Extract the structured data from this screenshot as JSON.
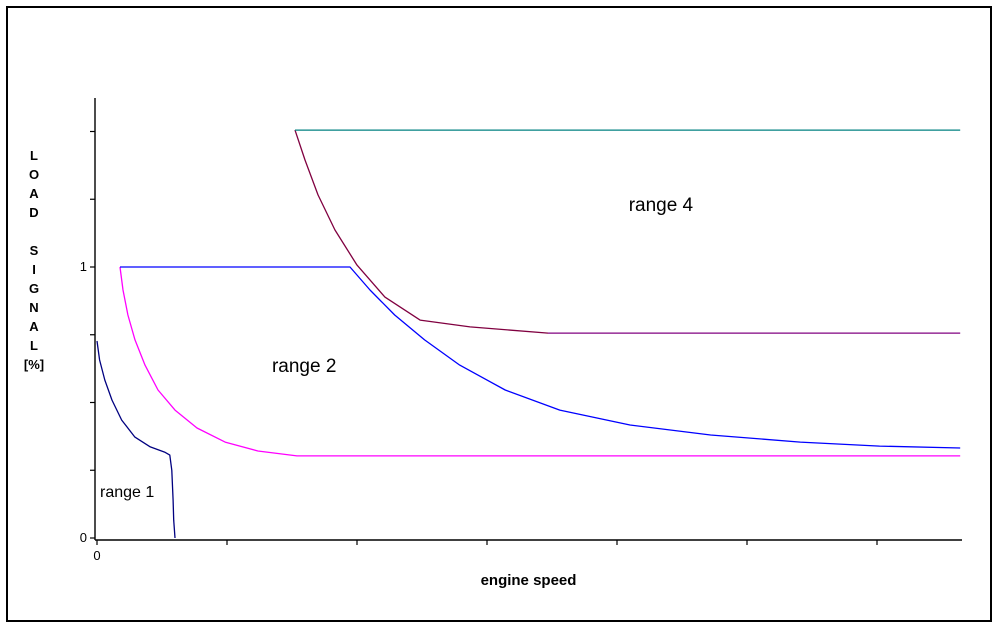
{
  "figure": {
    "background": "#ffffff",
    "border_color": "#000000",
    "axis_color": "#000000"
  },
  "chart_data": {
    "type": "line",
    "title": "",
    "xlabel": "engine speed",
    "ylabel": "LOAD SIGNAL [%]",
    "ylabel_lines": [
      "L",
      "O",
      "A",
      "D",
      "",
      "S",
      "I",
      "G",
      "N",
      "A",
      "L",
      "[%]"
    ],
    "xlim": [
      0,
      6.65
    ],
    "ylim": [
      0,
      1.69
    ],
    "x_ticks": [
      0,
      1,
      2,
      3,
      4,
      5,
      6
    ],
    "y_ticks": [
      0,
      0.25,
      0.5,
      0.75,
      1,
      1.25,
      1.5
    ],
    "x_tick_labels": [
      {
        "value": 0,
        "label": "0"
      }
    ],
    "y_tick_labels": [
      {
        "value": 1,
        "label": "1"
      },
      {
        "value": 0,
        "label": "0"
      }
    ],
    "grid": false,
    "legend": "none",
    "annotations": [
      {
        "text": "range 1",
        "x": 0.023,
        "y": 0.162,
        "size": 16
      },
      {
        "text": "range 2",
        "x": 1.346,
        "y": 0.627,
        "size": 19
      },
      {
        "text": "range 4",
        "x": 4.09,
        "y": 1.221,
        "size": 19
      }
    ],
    "series": [
      {
        "name": "range1-boundary",
        "color": "#000080",
        "points": [
          [
            0,
            0.727
          ],
          [
            0.02,
            0.657
          ],
          [
            0.06,
            0.583
          ],
          [
            0.115,
            0.509
          ],
          [
            0.19,
            0.435
          ],
          [
            0.29,
            0.373
          ],
          [
            0.41,
            0.336
          ],
          [
            0.52,
            0.317
          ],
          [
            0.56,
            0.306
          ],
          [
            0.575,
            0.25
          ],
          [
            0.585,
            0.14
          ],
          [
            0.59,
            0.066
          ],
          [
            0.6,
            0
          ]
        ]
      },
      {
        "name": "range2-lower-boundary",
        "color": "#ff00ff",
        "points": [
          [
            0.177,
            1.0
          ],
          [
            0.2,
            0.915
          ],
          [
            0.238,
            0.823
          ],
          [
            0.292,
            0.731
          ],
          [
            0.369,
            0.638
          ],
          [
            0.469,
            0.546
          ],
          [
            0.6,
            0.472
          ],
          [
            0.769,
            0.406
          ],
          [
            0.985,
            0.354
          ],
          [
            1.238,
            0.321
          ],
          [
            1.538,
            0.303
          ],
          [
            6.64,
            0.303
          ]
        ]
      },
      {
        "name": "range2-upper-boundary",
        "color": "#0000ff",
        "points": [
          [
            0.177,
            1.0
          ],
          [
            1.946,
            1.0
          ],
          [
            2.1,
            0.915
          ],
          [
            2.29,
            0.823
          ],
          [
            2.52,
            0.731
          ],
          [
            2.79,
            0.638
          ],
          [
            3.14,
            0.546
          ],
          [
            3.56,
            0.472
          ],
          [
            4.1,
            0.417
          ],
          [
            4.72,
            0.38
          ],
          [
            5.41,
            0.354
          ],
          [
            6.02,
            0.339
          ],
          [
            6.64,
            0.332
          ]
        ]
      },
      {
        "name": "range4-lower-boundary-curve",
        "color": "#800040",
        "points": [
          [
            1.523,
            1.505
          ],
          [
            1.6,
            1.395
          ],
          [
            1.7,
            1.266
          ],
          [
            1.83,
            1.137
          ],
          [
            2.0,
            1.007
          ],
          [
            2.215,
            0.889
          ],
          [
            2.485,
            0.804
          ],
          [
            2.869,
            0.779
          ],
          [
            3.469,
            0.756
          ]
        ]
      },
      {
        "name": "range4-lower-boundary-flat",
        "color": "#800080",
        "points": [
          [
            3.469,
            0.756
          ],
          [
            6.64,
            0.756
          ]
        ]
      },
      {
        "name": "range4-upper-boundary",
        "color": "#008080",
        "points": [
          [
            1.523,
            1.505
          ],
          [
            6.64,
            1.505
          ]
        ]
      }
    ]
  }
}
